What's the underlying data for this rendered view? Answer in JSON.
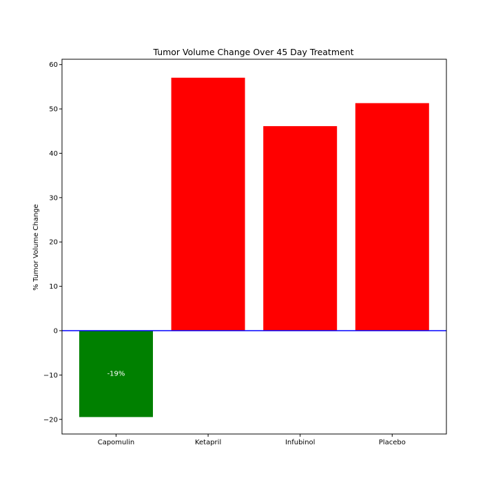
{
  "chart_data": {
    "type": "bar",
    "title": "Tumor Volume Change Over 45 Day Treatment",
    "xlabel": "",
    "ylabel": "% Tumor Volume Change",
    "categories": [
      "Capomulin",
      "Ketapril",
      "Infubinol",
      "Placebo"
    ],
    "values": [
      -19.48,
      57.03,
      46.12,
      51.3
    ],
    "bar_colors": [
      "#008000",
      "#ff0000",
      "#ff0000",
      "#ff0000"
    ],
    "ylim": [
      -23.3,
      61.2
    ],
    "yticks": [
      -20,
      -10,
      0,
      10,
      20,
      30,
      40,
      50,
      60
    ],
    "ytick_labels": [
      "−20",
      "−10",
      "0",
      "10",
      "20",
      "30",
      "40",
      "50",
      "60"
    ],
    "zero_line_color": "#0000ff",
    "grid": false,
    "data_labels": [
      {
        "category": "Capomulin",
        "text": "-19%",
        "color": "#ffffff"
      }
    ]
  }
}
